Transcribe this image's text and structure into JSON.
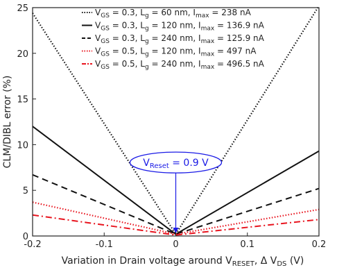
{
  "chart_data": {
    "type": "line",
    "xlabel": {
      "main": "Variation in Drain voltage around V",
      "sub1": "RESET",
      "mid": ", Δ V",
      "sub2": "DS",
      "end": " (V)"
    },
    "ylabel": "CLM/DIBL error (%)",
    "xlim": [
      -0.2,
      0.2
    ],
    "ylim": [
      0,
      25
    ],
    "x_ticks": [
      "-0.2",
      "-0.1",
      "0",
      "0.1",
      "0.2"
    ],
    "y_ticks": [
      "0",
      "5",
      "10",
      "15",
      "20",
      "25"
    ],
    "legend_position": "top-right",
    "grid": false,
    "series": [
      {
        "color": "#111111",
        "dash": "dotted",
        "x": [
          -0.2,
          0.0,
          0.2
        ],
        "y": [
          24.4,
          0.2,
          25.2
        ],
        "label": [
          [
            "V",
            false
          ],
          [
            "GS",
            true
          ],
          [
            " = 0.3, L",
            false
          ],
          [
            "g",
            true
          ],
          [
            " = 60 nm, I",
            false
          ],
          [
            "max",
            true
          ],
          [
            " = 238 nA",
            false
          ]
        ]
      },
      {
        "color": "#111111",
        "dash": "solid",
        "x": [
          -0.2,
          0.0,
          0.2
        ],
        "y": [
          12.0,
          0.2,
          9.3
        ],
        "label": [
          [
            "V",
            false
          ],
          [
            "GS",
            true
          ],
          [
            " = 0.3, L",
            false
          ],
          [
            "g",
            true
          ],
          [
            " = 120 nm, I",
            false
          ],
          [
            "max",
            true
          ],
          [
            " = 136.9 nA",
            false
          ]
        ]
      },
      {
        "color": "#111111",
        "dash": "dashed",
        "x": [
          -0.2,
          0.0,
          0.2
        ],
        "y": [
          6.7,
          0.2,
          5.2
        ],
        "label": [
          [
            "V",
            false
          ],
          [
            "GS",
            true
          ],
          [
            " = 0.3, L",
            false
          ],
          [
            "g",
            true
          ],
          [
            " = 240 nm, I",
            false
          ],
          [
            "max",
            true
          ],
          [
            " = 125.9 nA",
            false
          ]
        ]
      },
      {
        "color": "#e8141e",
        "dash": "dotted",
        "x": [
          -0.2,
          0.0,
          0.2
        ],
        "y": [
          3.7,
          0.2,
          2.9
        ],
        "label": [
          [
            "V",
            false
          ],
          [
            "GS",
            true
          ],
          [
            " = 0.5, L",
            false
          ],
          [
            "g",
            true
          ],
          [
            " = 120 nm, I",
            false
          ],
          [
            "max",
            true
          ],
          [
            " = 497 nA",
            false
          ]
        ]
      },
      {
        "color": "#e8141e",
        "dash": "dashdot",
        "x": [
          -0.2,
          0.0,
          0.2
        ],
        "y": [
          2.3,
          0.1,
          1.8
        ],
        "label": [
          [
            "V",
            false
          ],
          [
            "GS",
            true
          ],
          [
            " = 0.5, L",
            false
          ],
          [
            "g",
            true
          ],
          [
            " = 240 nm, I",
            false
          ],
          [
            "max",
            true
          ],
          [
            " = 496.5 nA",
            false
          ]
        ]
      }
    ],
    "annotation": {
      "color": "#1a1ae6",
      "main": "V",
      "sub": "Reset",
      "rest": " = 0.9 V",
      "points_to": {
        "x": 0.0,
        "y": 0.3
      },
      "anchor": {
        "x": 0.0,
        "y": 6.3
      }
    }
  }
}
